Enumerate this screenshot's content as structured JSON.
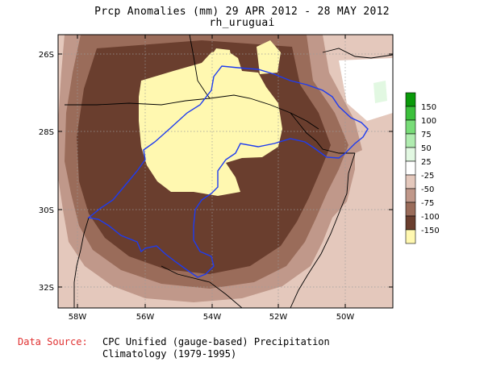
{
  "title": "Prcp Anomalies (mm) 29 APR 2012 - 28 MAY 2012",
  "subtitle": "rh_uruguai",
  "data_source_label": "Data Source:",
  "data_source_line1": "CPC Unified (gauge-based) Precipitation",
  "data_source_line2": "Climatology (1979-1995)",
  "chart_data": {
    "type": "heatmap",
    "units": "mm",
    "x_ticks": [
      "58W",
      "56W",
      "54W",
      "52W",
      "50W"
    ],
    "y_ticks": [
      "26S",
      "28S",
      "30S",
      "32S"
    ],
    "xlim": [
      -58.5,
      -48.5
    ],
    "ylim": [
      -32.5,
      -25.4
    ],
    "legend": {
      "placement": "right",
      "levels": [
        {
          "label": "150",
          "color": "#0a9a0a"
        },
        {
          "label": "100",
          "color": "#3cc03c"
        },
        {
          "label": "75",
          "color": "#78dc78"
        },
        {
          "label": "50",
          "color": "#b0ecb0"
        },
        {
          "label": "25",
          "color": "#e2f8e2"
        },
        {
          "label": "-25",
          "color": "#ffffff"
        },
        {
          "label": "-50",
          "color": "#e4c8bc"
        },
        {
          "label": "-75",
          "color": "#c0988a"
        },
        {
          "label": "-100",
          "color": "#9a6c5a"
        },
        {
          "label": "-150",
          "color": "#6a3e2e"
        },
        {
          "label": "",
          "color": "#fff8b0"
        }
      ]
    }
  }
}
